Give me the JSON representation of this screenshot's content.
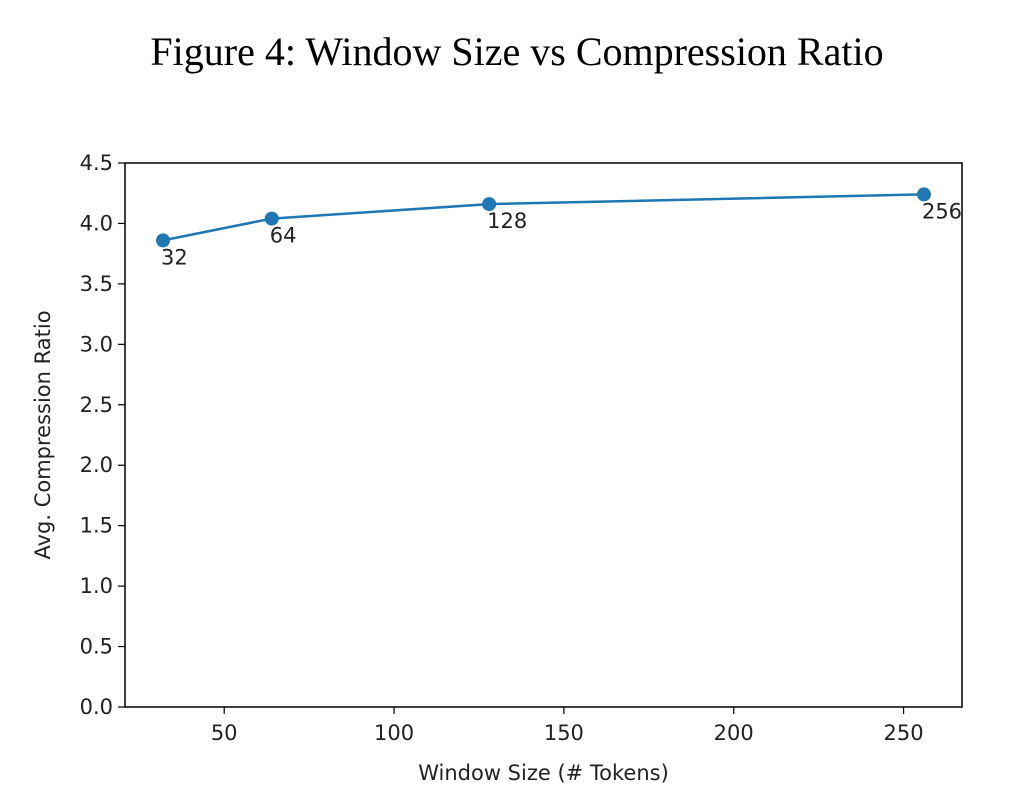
{
  "figure_title": "Figure 4: Window Size vs Compression Ratio",
  "colors": {
    "series": "#1f77b4",
    "axes": "#000000",
    "text": "#222222"
  },
  "chart_data": {
    "type": "line",
    "title": "Figure 4: Window Size vs Compression Ratio",
    "xlabel": "Window Size (# Tokens)",
    "ylabel": "Avg. Compression Ratio",
    "xlim": [
      20.8,
      267.2
    ],
    "ylim": [
      0,
      4.5
    ],
    "xticks": [
      50,
      100,
      150,
      200,
      250
    ],
    "xtick_labels": [
      "50",
      "100",
      "150",
      "200",
      "250"
    ],
    "yticks": [
      0,
      0.5,
      1,
      1.5,
      2,
      2.5,
      3,
      3.5,
      4,
      4.5
    ],
    "ytick_labels": [
      "0.0",
      "0.5",
      "1.0",
      "1.5",
      "2.0",
      "2.5",
      "3.0",
      "3.5",
      "4.0",
      "4.5"
    ],
    "grid": false,
    "series": [
      {
        "x": [
          32,
          64,
          128,
          256
        ],
        "values": [
          3.86,
          4.04,
          4.16,
          4.24
        ],
        "point_labels": [
          "32",
          "64",
          "128",
          "256"
        ],
        "marker": "circle"
      }
    ]
  }
}
